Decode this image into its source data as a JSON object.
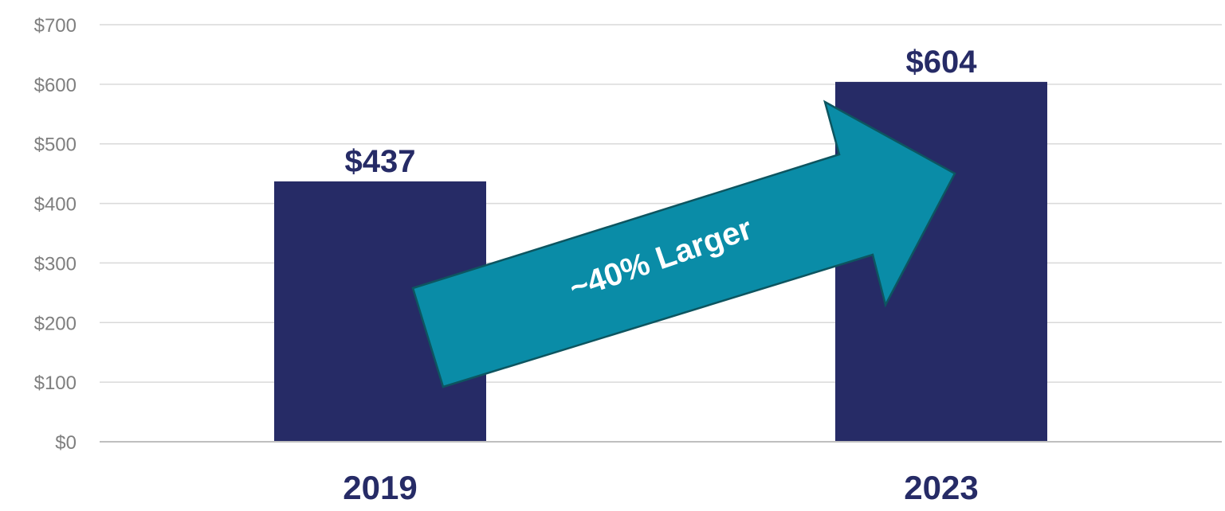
{
  "chart_data": {
    "type": "bar",
    "categories": [
      "2019",
      "2023"
    ],
    "values": [
      437,
      604
    ],
    "data_labels": [
      "$437",
      "$604"
    ],
    "y_ticks": [
      "$0",
      "$100",
      "$200",
      "$300",
      "$400",
      "$500",
      "$600",
      "$700"
    ],
    "ylim": [
      0,
      700
    ],
    "grid": true,
    "title": "",
    "xlabel": "",
    "ylabel": "",
    "annotation": {
      "text": "~40% Larger",
      "from_category": "2019",
      "to_category": "2023"
    },
    "colors": {
      "bar": "#262b66",
      "arrow": "#0a8ca7",
      "arrow_outline": "#0d5560",
      "grid": "#d9d9d9",
      "axis": "#bfbfbf",
      "tick_text": "#7f7f7f",
      "label_text": "#262b66"
    }
  }
}
